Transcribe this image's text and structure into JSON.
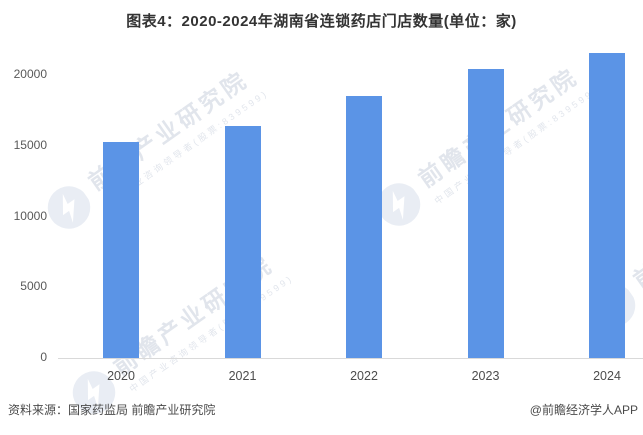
{
  "chart_data": {
    "type": "bar",
    "title": "图表4：2020-2024年湖南省连锁药店门店数量(单位：家)",
    "unit": "家",
    "categories": [
      "2020",
      "2021",
      "2022",
      "2023",
      "2024"
    ],
    "values": [
      15300,
      16400,
      18500,
      20450,
      21600
    ],
    "xlabel": "",
    "ylabel": "",
    "ylim": [
      0,
      22000
    ],
    "yticks": [
      0,
      5000,
      10000,
      15000,
      20000
    ],
    "grid": false,
    "legend": false,
    "bar_color": "#5B94E6",
    "axis_line_color": "#D9D9D9",
    "tick_label_color": "#595959",
    "title_color": "#333333"
  },
  "footer": {
    "source_text": "资料来源：国家药监局 前瞻产业研究院",
    "credit_text": "@前瞻经济学人APP"
  },
  "watermark": {
    "brand_text": "前瞻产业研究院",
    "sub_text": "中国产业咨询领导者(股票:839599)"
  }
}
